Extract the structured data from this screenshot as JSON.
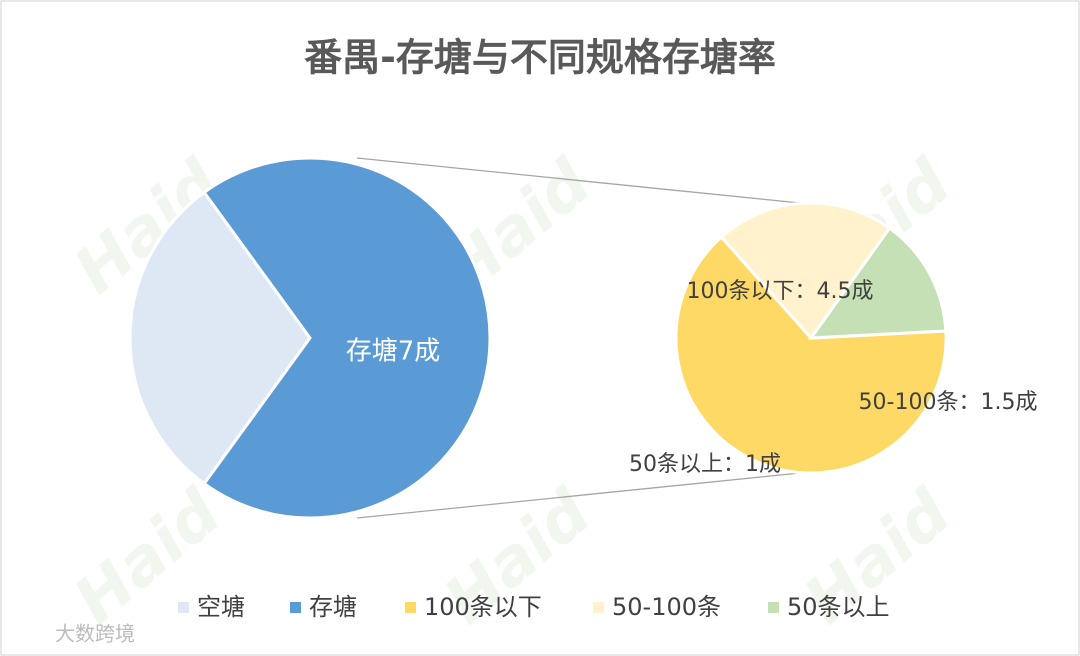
{
  "chart_data": {
    "type": "pie-of-pie",
    "title": "番禺-存塘与不同规格存塘率",
    "categories": [
      "空塘",
      "存塘"
    ],
    "values": [
      3,
      7
    ],
    "value_labels": [
      null,
      "存塘7成"
    ],
    "colors": [
      "#dee8f5",
      "#5b9bd5"
    ],
    "secondary": {
      "categories": [
        "100条以下",
        "50-100条",
        "50条以上"
      ],
      "values": [
        4.5,
        1.5,
        1
      ],
      "value_labels": [
        "100条以下：4.5成",
        "50-100条：1.5成",
        "50条以上：1成"
      ],
      "colors": [
        "#ffd966",
        "#fff2cc",
        "#c5e0b4"
      ]
    },
    "legend": "bottom",
    "watermark": "Haid",
    "footer_watermark": "大数跨境"
  }
}
